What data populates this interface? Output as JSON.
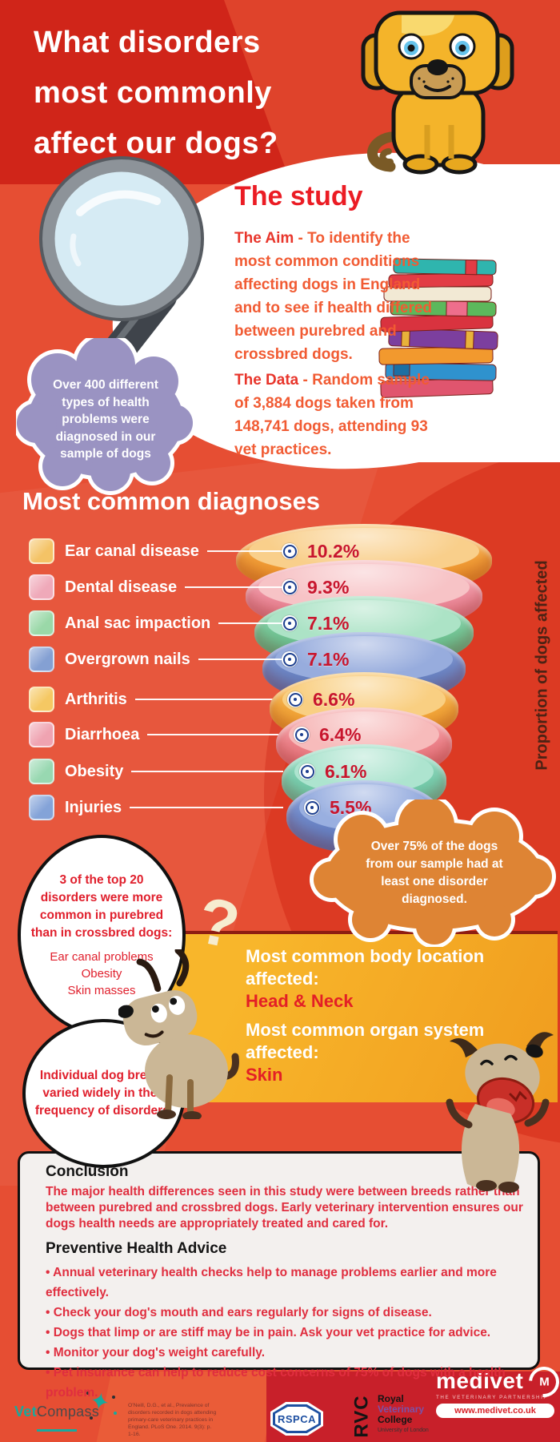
{
  "header": {
    "title_lines": [
      "What disorders",
      "most commonly",
      "affect our dogs?"
    ]
  },
  "study": {
    "heading": "The study",
    "aim_bold": "The Aim",
    "aim_rest": " - To identify the most common conditions affecting dogs in England and to see if health differed between purebred and crossbred dogs.",
    "data_bold": "The Data",
    "data_rest": " - Random sample of 3,884 dogs taken from 148,741 dogs, attending 93 vet practices."
  },
  "cloud_note": "Over 400 different types of health problems were diagnosed in our sample of dogs",
  "diagnoses": {
    "heading": "Most common diagnoses",
    "axis_label": "Proportion of dogs affected",
    "items": [
      {
        "label": "Ear canal disease",
        "value": "10.2%",
        "swatch": "#F4C366",
        "band": "#F29E38",
        "deep": "#ED8F21",
        "inner": "#F9CF8B"
      },
      {
        "label": "Dental disease",
        "value": "9.3%",
        "swatch": "#EFA9B9",
        "band": "#EE8F9F",
        "deep": "#E4707F",
        "inner": "#F7C3C6"
      },
      {
        "label": "Anal sac impaction",
        "value": "7.1%",
        "swatch": "#9AD8A8",
        "band": "#74C898",
        "deep": "#57B483",
        "inner": "#ACE3C6"
      },
      {
        "label": "Overgrown nails",
        "value": "7.1%",
        "swatch": "#84A0D3",
        "band": "#6E88C7",
        "deep": "#5873B5",
        "inner": "#97ACDD"
      },
      {
        "label": "Arthritis",
        "value": "6.6%",
        "swatch": "#F5C863",
        "band": "#F3A83C",
        "deep": "#EE9825",
        "inner": "#F9CF82"
      },
      {
        "label": "Diarrhoea",
        "value": "6.4%",
        "swatch": "#EFA3B1",
        "band": "#EE848C",
        "deep": "#E56970",
        "inner": "#F7BBBB"
      },
      {
        "label": "Obesity",
        "value": "6.1%",
        "swatch": "#98D8B1",
        "band": "#78CEAE",
        "deep": "#5FBD9B",
        "inner": "#ADE4CF"
      },
      {
        "label": "Injuries",
        "value": "5.5%",
        "swatch": "#84A3D8",
        "band": "#6F8ACB",
        "deep": "#5A76BA",
        "inner": "#99AFE0"
      }
    ]
  },
  "note_75": "Over 75% of the dogs from our sample had at least one disorder diagnosed.",
  "bubble1": {
    "title": "3 of the top 20 disorders were more common in purebred than in crossbred dogs:",
    "items": [
      "Ear canal problems",
      "Obesity",
      "Skin masses"
    ]
  },
  "bubble2": {
    "text": "Individual dog breeds varied widely in their frequency of disorders."
  },
  "highlight_box": {
    "location_label": "Most common body location affected:",
    "location_value": "Head & Neck",
    "organ_label": "Most common organ system affected:",
    "organ_value": "Skin"
  },
  "conclusion": {
    "heading": "Conclusion",
    "text": "The major health differences seen in this study were between breeds rather than between purebred and crossbred dogs. Early veterinary intervention ensures our dogs health needs are appropriately treated and cared for.",
    "advice_heading": "Preventive Health Advice",
    "advice_bullets": [
      "Annual veterinary health checks help to manage problems earlier and more effectively.",
      "Check your dog's mouth and ears regularly for signs of disease.",
      "Dogs that limp or are stiff may be in pain. Ask your vet practice for advice.",
      "Monitor your dog's weight carefully.",
      "Pet insurance can help to reduce cost concerns of 75% of dogs with a health problem."
    ]
  },
  "footer": {
    "vetcompass_teal": "Vet",
    "vetcompass_gray": "Compass",
    "citation": "O'Neill, D.G., et al., Prevalence of disorders recorded in dogs attending primary-care veterinary practices in England. PLoS One. 2014. 9(3): p. 1-16.",
    "rspca": "RSPCA",
    "rvc_abbr": "RVC",
    "rvc_line1": "Royal",
    "rvc_line2": "Veterinary",
    "rvc_line3": "College",
    "rvc_line4": "University of London",
    "medivet_name": "medivet",
    "medivet_mark": "M",
    "medivet_tagline": "THE VETERINARY PARTNERSHIP",
    "medivet_url": "www.medivet.co.uk"
  },
  "chart_data": {
    "type": "funnel",
    "title": "Most common diagnoses",
    "categories": [
      "Ear canal disease",
      "Dental disease",
      "Anal sac impaction",
      "Overgrown nails",
      "Arthritis",
      "Diarrhoea",
      "Obesity",
      "Injuries"
    ],
    "values": [
      10.2,
      9.3,
      7.1,
      7.1,
      6.6,
      6.4,
      6.1,
      5.5
    ],
    "unit": "%",
    "ylabel": "Proportion of dogs affected",
    "legend_position": "left"
  }
}
